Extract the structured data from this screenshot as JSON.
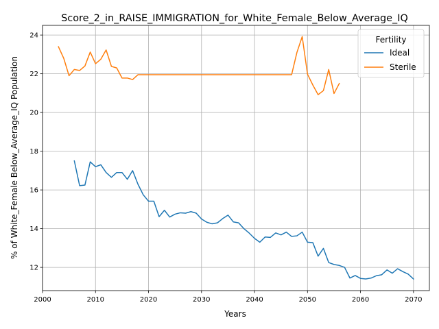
{
  "chart_data": {
    "type": "line",
    "title": "Score_2_in_RAISE_IMMIGRATION_for_White_Female_Below_Average_IQ",
    "xlabel": "Years",
    "ylabel": "% of White_Female Below_Average_IQ Population",
    "xlim": [
      2000,
      2073
    ],
    "ylim": [
      10.8,
      24.5
    ],
    "xticks": [
      2000,
      2010,
      2020,
      2030,
      2040,
      2050,
      2060,
      2070
    ],
    "yticks": [
      12,
      14,
      16,
      18,
      20,
      22,
      24
    ],
    "grid": true,
    "legend": {
      "title": "Fertility",
      "position": "top-right"
    },
    "series": [
      {
        "name": "Ideal",
        "color": "#1f77b4",
        "x": [
          2006,
          2007,
          2008,
          2009,
          2010,
          2011,
          2012,
          2013,
          2014,
          2015,
          2016,
          2017,
          2018,
          2019,
          2020,
          2021,
          2022,
          2023,
          2024,
          2025,
          2026,
          2027,
          2028,
          2029,
          2030,
          2031,
          2032,
          2033,
          2034,
          2035,
          2036,
          2037,
          2038,
          2039,
          2040,
          2041,
          2042,
          2043,
          2044,
          2045,
          2046,
          2047,
          2048,
          2049,
          2050,
          2051,
          2052,
          2053,
          2054,
          2055,
          2056,
          2057,
          2058,
          2059,
          2060,
          2061,
          2062,
          2063,
          2064,
          2065,
          2066,
          2067,
          2068,
          2069,
          2070
        ],
        "values": [
          17.5,
          16.22,
          16.25,
          17.45,
          17.2,
          17.3,
          16.9,
          16.65,
          16.9,
          16.9,
          16.55,
          17.0,
          16.3,
          15.75,
          15.42,
          15.42,
          14.62,
          14.95,
          14.6,
          14.75,
          14.82,
          14.8,
          14.88,
          14.8,
          14.5,
          14.33,
          14.25,
          14.3,
          14.52,
          14.7,
          14.35,
          14.3,
          14.0,
          13.77,
          13.5,
          13.3,
          13.57,
          13.55,
          13.78,
          13.68,
          13.82,
          13.6,
          13.63,
          13.82,
          13.3,
          13.28,
          12.58,
          12.98,
          12.25,
          12.15,
          12.1,
          12.0,
          11.45,
          11.58,
          11.43,
          11.4,
          11.45,
          11.57,
          11.62,
          11.87,
          11.7,
          11.93,
          11.78,
          11.65,
          11.4
        ]
      },
      {
        "name": "Sterile",
        "color": "#ff7f0e",
        "x": [
          2003,
          2004,
          2005,
          2006,
          2007,
          2008,
          2009,
          2010,
          2011,
          2012,
          2013,
          2014,
          2015,
          2016,
          2017,
          2018,
          2019,
          2020,
          2021,
          2022,
          2023,
          2024,
          2025,
          2026,
          2027,
          2028,
          2029,
          2030,
          2031,
          2032,
          2033,
          2034,
          2035,
          2036,
          2037,
          2038,
          2039,
          2040,
          2041,
          2042,
          2043,
          2044,
          2045,
          2046,
          2047,
          2048,
          2049,
          2050,
          2051,
          2052,
          2053,
          2054,
          2055,
          2056
        ],
        "values": [
          23.4,
          22.8,
          21.9,
          22.22,
          22.17,
          22.4,
          23.12,
          22.52,
          22.75,
          23.23,
          22.38,
          22.3,
          21.78,
          21.78,
          21.7,
          21.95,
          21.95,
          21.95,
          21.95,
          21.95,
          21.95,
          21.95,
          21.95,
          21.95,
          21.95,
          21.95,
          21.95,
          21.95,
          21.95,
          21.95,
          21.95,
          21.95,
          21.95,
          21.95,
          21.95,
          21.95,
          21.95,
          21.95,
          21.95,
          21.95,
          21.95,
          21.95,
          21.95,
          21.95,
          21.95,
          23.1,
          23.92,
          21.98,
          21.42,
          20.92,
          21.13,
          22.22,
          20.98,
          21.5
        ]
      }
    ]
  }
}
